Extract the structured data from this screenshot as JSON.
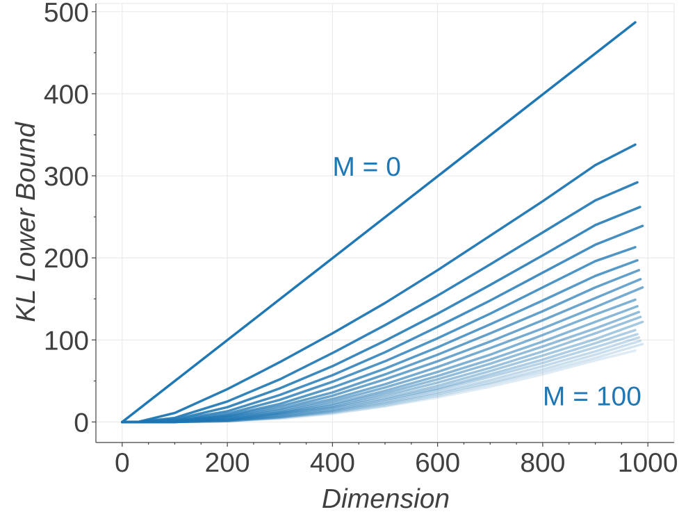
{
  "chart_data": {
    "type": "line",
    "xlabel": "Dimension",
    "ylabel": "KL Lower Bound",
    "xlim": [
      -50,
      1050
    ],
    "ylim": [
      -25,
      510
    ],
    "xticks": [
      0,
      200,
      400,
      600,
      800,
      1000
    ],
    "yticks": [
      0,
      100,
      200,
      300,
      400,
      500
    ],
    "grid": true,
    "legend": "none",
    "color": "#1f77b4",
    "annotations": [
      {
        "text": "M = 0",
        "x": 400,
        "y": 312
      },
      {
        "text": "M = 100",
        "x": 800,
        "y": 32
      }
    ],
    "series": [
      {
        "x": [
          0,
          976
        ],
        "y": [
          0,
          487
        ],
        "end_y": 487
      },
      {
        "x": [
          0,
          30,
          100,
          200,
          300,
          400,
          500,
          600,
          700,
          800,
          900,
          976
        ],
        "y": [
          0,
          0,
          11,
          40,
          73,
          108,
          145,
          185,
          227,
          269,
          313,
          338
        ]
      },
      {
        "x": [
          0,
          30,
          100,
          200,
          300,
          400,
          500,
          600,
          700,
          800,
          900,
          980
        ],
        "y": [
          0,
          0,
          5,
          25,
          52,
          84,
          118,
          154,
          192,
          231,
          270,
          292
        ]
      },
      {
        "x": [
          0,
          30,
          100,
          200,
          300,
          400,
          500,
          600,
          700,
          800,
          900,
          985
        ],
        "y": [
          0,
          0,
          3,
          18,
          41,
          68,
          99,
          132,
          167,
          203,
          240,
          262
        ]
      },
      {
        "x": [
          0,
          30,
          100,
          200,
          300,
          400,
          500,
          600,
          700,
          800,
          900,
          990
        ],
        "y": [
          0,
          0,
          2,
          13,
          33,
          57,
          85,
          116,
          148,
          182,
          216,
          239
        ]
      },
      {
        "x": [
          0,
          30,
          100,
          200,
          300,
          400,
          500,
          600,
          700,
          800,
          900,
          976
        ],
        "y": [
          0,
          0,
          1,
          10,
          27,
          49,
          74,
          102,
          132,
          164,
          196,
          213
        ]
      },
      {
        "x": [
          0,
          30,
          100,
          200,
          300,
          400,
          500,
          600,
          700,
          800,
          900,
          980
        ],
        "y": [
          0,
          0,
          1,
          8,
          22,
          42,
          65,
          91,
          119,
          148,
          178,
          197
        ]
      },
      {
        "x": [
          0,
          30,
          100,
          200,
          300,
          400,
          500,
          600,
          700,
          800,
          900,
          983
        ],
        "y": [
          0,
          0,
          1,
          7,
          19,
          36,
          58,
          82,
          108,
          135,
          164,
          185
        ]
      },
      {
        "x": [
          0,
          30,
          100,
          200,
          300,
          400,
          500,
          600,
          700,
          800,
          900,
          986
        ],
        "y": [
          0,
          0,
          0,
          6,
          16,
          32,
          52,
          74,
          98,
          124,
          151,
          174
        ]
      },
      {
        "x": [
          0,
          30,
          100,
          200,
          300,
          400,
          500,
          600,
          700,
          800,
          900,
          990
        ],
        "y": [
          0,
          0,
          0,
          5,
          14,
          28,
          46,
          67,
          90,
          114,
          140,
          164
        ]
      },
      {
        "x": [
          0,
          30,
          100,
          200,
          300,
          400,
          500,
          600,
          700,
          800,
          900,
          976
        ],
        "y": [
          0,
          0,
          0,
          4,
          12,
          25,
          42,
          61,
          82,
          106,
          131,
          149
        ]
      },
      {
        "x": [
          0,
          30,
          100,
          200,
          300,
          400,
          500,
          600,
          700,
          800,
          900,
          980
        ],
        "y": [
          0,
          0,
          0,
          3,
          11,
          22,
          38,
          56,
          76,
          98,
          122,
          141
        ]
      },
      {
        "x": [
          0,
          30,
          100,
          200,
          300,
          400,
          500,
          600,
          700,
          800,
          900,
          983
        ],
        "y": [
          0,
          0,
          0,
          3,
          10,
          20,
          35,
          52,
          71,
          92,
          114,
          134
        ]
      },
      {
        "x": [
          0,
          30,
          100,
          200,
          300,
          400,
          500,
          600,
          700,
          800,
          900,
          986
        ],
        "y": [
          0,
          0,
          0,
          2,
          9,
          18,
          32,
          48,
          66,
          86,
          108,
          128
        ]
      },
      {
        "x": [
          0,
          30,
          100,
          200,
          300,
          400,
          500,
          600,
          700,
          800,
          900,
          990
        ],
        "y": [
          0,
          0,
          0,
          2,
          8,
          17,
          29,
          44,
          62,
          81,
          101,
          122
        ]
      },
      {
        "x": [
          0,
          30,
          100,
          200,
          300,
          400,
          500,
          600,
          700,
          800,
          900,
          976
        ],
        "y": [
          0,
          0,
          0,
          2,
          7,
          15,
          27,
          41,
          58,
          76,
          96,
          112
        ]
      },
      {
        "x": [
          0,
          30,
          100,
          200,
          300,
          400,
          500,
          600,
          700,
          800,
          900,
          980
        ],
        "y": [
          0,
          0,
          0,
          1,
          6,
          14,
          25,
          39,
          55,
          72,
          91,
          107
        ]
      },
      {
        "x": [
          0,
          30,
          100,
          200,
          300,
          400,
          500,
          600,
          700,
          800,
          900,
          983
        ],
        "y": [
          0,
          0,
          0,
          1,
          6,
          13,
          23,
          36,
          51,
          68,
          86,
          103
        ]
      },
      {
        "x": [
          0,
          30,
          100,
          200,
          300,
          400,
          500,
          600,
          700,
          800,
          900,
          986
        ],
        "y": [
          0,
          0,
          0,
          1,
          5,
          12,
          22,
          34,
          48,
          64,
          82,
          99
        ]
      },
      {
        "x": [
          0,
          30,
          100,
          200,
          300,
          400,
          500,
          600,
          700,
          800,
          900,
          990
        ],
        "y": [
          0,
          0,
          0,
          1,
          5,
          11,
          20,
          32,
          46,
          61,
          78,
          95
        ]
      },
      {
        "x": [
          0,
          30,
          100,
          200,
          300,
          400,
          500,
          600,
          700,
          800,
          900,
          976
        ],
        "y": [
          0,
          0,
          0,
          1,
          4,
          10,
          19,
          30,
          43,
          58,
          75,
          87
        ]
      }
    ]
  }
}
